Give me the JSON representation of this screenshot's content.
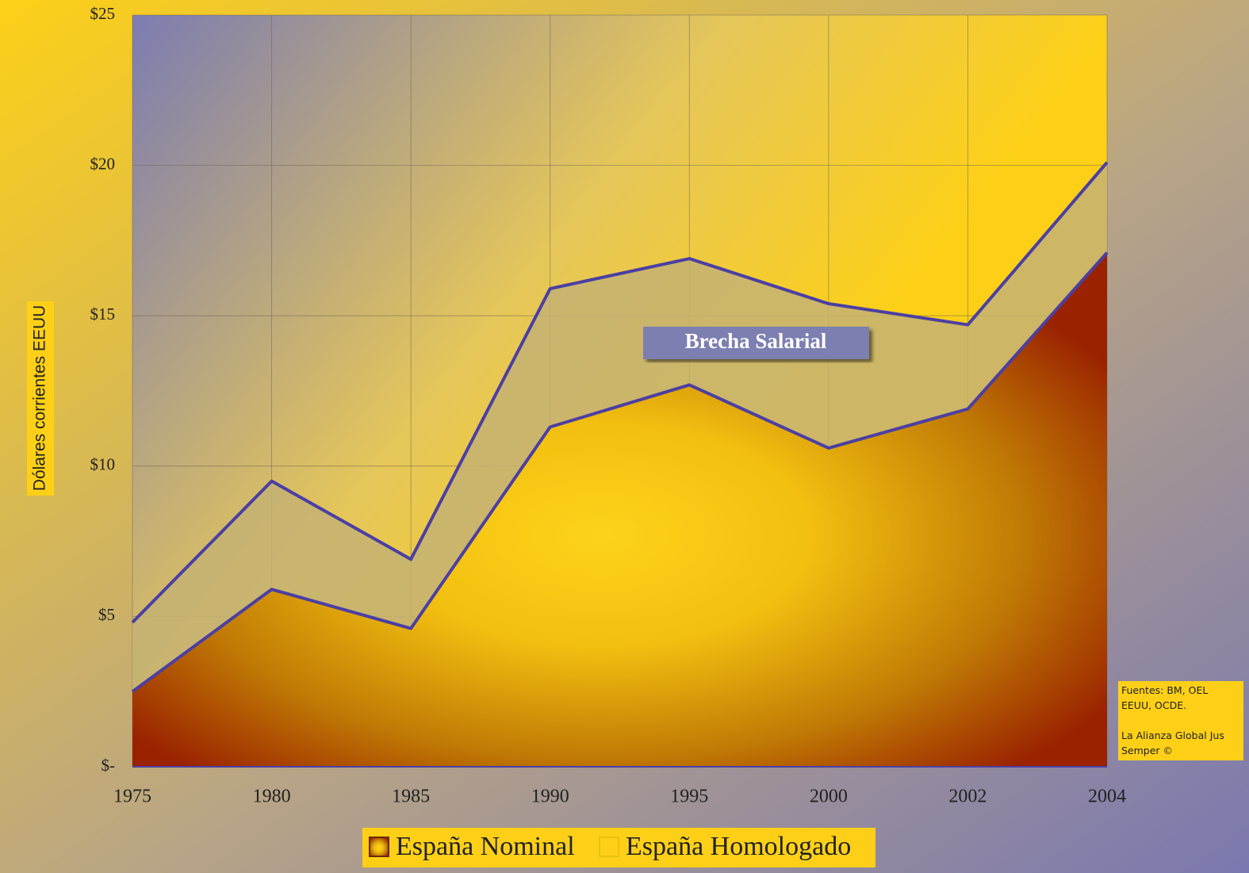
{
  "chart_data": {
    "type": "area",
    "categories": [
      "1975",
      "1980",
      "1985",
      "1990",
      "1995",
      "2000",
      "2002",
      "2004"
    ],
    "series": [
      {
        "name": "España Homologado",
        "color": "#c4b273",
        "values": [
          4.8,
          9.5,
          6.9,
          15.9,
          16.9,
          15.4,
          14.7,
          20.1
        ]
      },
      {
        "name": "España Nominal",
        "color": "#9a2200",
        "values": [
          2.5,
          5.9,
          4.6,
          11.3,
          12.7,
          10.6,
          11.9,
          17.1
        ]
      }
    ],
    "line_color": "#4b3fa3",
    "ylim": [
      0,
      25
    ],
    "yticks": [
      {
        "value": 0,
        "label": "$-"
      },
      {
        "value": 5,
        "label": "$5"
      },
      {
        "value": 10,
        "label": "$10"
      },
      {
        "value": 15,
        "label": "$15"
      },
      {
        "value": 20,
        "label": "$20"
      },
      {
        "value": 25,
        "label": "$25"
      }
    ],
    "grid": true,
    "ylabel": "Dólares corrientes EEUU",
    "annotation": "Brecha Salarial",
    "source": [
      "Fuentes: BM, OEL EEUU, OCDE.",
      "La Alianza Global Jus Semper ©"
    ],
    "legend": "bottom"
  }
}
